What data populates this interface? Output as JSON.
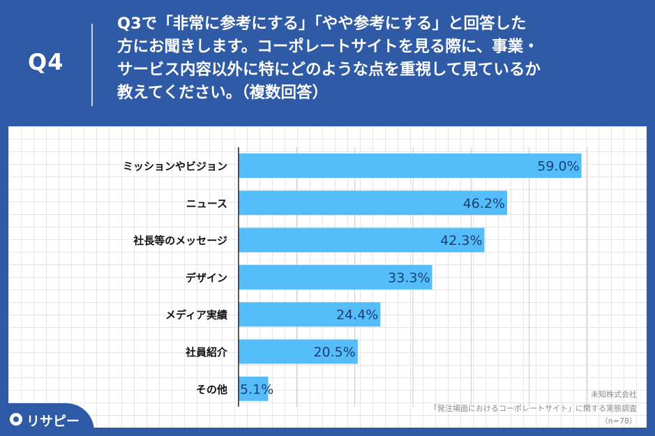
{
  "header": {
    "question_number": "Q4",
    "question_lines": [
      "Q3で「非常に参考にする」「やや参考にする」と回答した",
      "方にお聞きします。コーポレートサイトを見る際に、事業・",
      "サービス内容以外に特にどのような点を重視して見ているか",
      "教えてください。（複数回答）"
    ]
  },
  "chart_data": {
    "type": "bar",
    "orientation": "horizontal",
    "categories": [
      "ミッションやビジョン",
      "ニュース",
      "社長等のメッセージ",
      "デザイン",
      "メディア実績",
      "社員紹介",
      "その他"
    ],
    "values": [
      59.0,
      46.2,
      42.3,
      33.3,
      24.4,
      20.5,
      5.1
    ],
    "value_labels": [
      "59.0%",
      "46.2%",
      "42.3%",
      "33.3%",
      "24.4%",
      "20.5%",
      "5.1%"
    ],
    "xlim": [
      0,
      60
    ],
    "grid": true,
    "bar_color": "#55bdf9",
    "label_color": "#1b3e73"
  },
  "source": {
    "company": "未知株式会社",
    "survey": "「発注場面におけるコーポレートサイト」に関する実態調査",
    "sample": "（n=78）"
  },
  "logo": {
    "text": "リサピー",
    "icon": "risapi-logo-icon"
  },
  "colors": {
    "background": "#2f5aa6",
    "panel": "#ffffff"
  }
}
